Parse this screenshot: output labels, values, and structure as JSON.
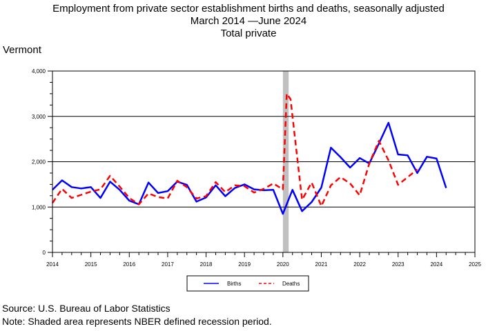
{
  "title_lines": [
    "Employment from private sector establishment births and deaths, seasonally adjusted",
    "March 2014 —June 2024",
    "Total private"
  ],
  "state_label": "Vermont",
  "footnotes": [
    "Source: U.S. Bureau of Labor Statistics",
    "Note: Shaded area represents NBER defined recession period."
  ],
  "colors": {
    "births": "#0000ff",
    "deaths": "#ff0000",
    "recession": "#c0c0c0",
    "grid": "#000000"
  },
  "chart_data": {
    "type": "line",
    "xlim": [
      2014,
      2025
    ],
    "ylim": [
      0,
      4000
    ],
    "x_ticks": [
      2014,
      2015,
      2016,
      2017,
      2018,
      2019,
      2020,
      2021,
      2022,
      2023,
      2024,
      2025
    ],
    "y_ticks": [
      "0",
      "1,000",
      "2,000",
      "3,000",
      "4,000"
    ],
    "y_tick_values": [
      0,
      1000,
      2000,
      3000,
      4000
    ],
    "grid": "horizontal",
    "recession_shading": [
      2020.0,
      2020.15
    ],
    "legend_position": "bottom-center",
    "series": [
      {
        "name": "Births",
        "style": "solid",
        "x": [
          2014.0,
          2014.25,
          2014.5,
          2014.75,
          2015.0,
          2015.25,
          2015.5,
          2015.75,
          2016.0,
          2016.25,
          2016.5,
          2016.75,
          2017.0,
          2017.25,
          2017.5,
          2017.75,
          2018.0,
          2018.25,
          2018.5,
          2018.75,
          2019.0,
          2019.25,
          2019.5,
          2019.75,
          2020.0,
          2020.25,
          2020.5,
          2020.75,
          2021.0,
          2021.25,
          2021.5,
          2021.75,
          2022.0,
          2022.25,
          2022.5,
          2022.75,
          2023.0,
          2023.25,
          2023.5,
          2023.75,
          2024.0,
          2024.25
        ],
        "values": [
          1380,
          1590,
          1440,
          1410,
          1440,
          1200,
          1560,
          1380,
          1140,
          1060,
          1540,
          1310,
          1350,
          1560,
          1490,
          1120,
          1210,
          1480,
          1240,
          1420,
          1500,
          1390,
          1370,
          1380,
          850,
          1380,
          910,
          1110,
          1430,
          2310,
          2100,
          1870,
          2080,
          1960,
          2400,
          2860,
          2160,
          2140,
          1750,
          2110,
          2070,
          1420
        ]
      },
      {
        "name": "Deaths",
        "style": "dashed",
        "x": [
          2014.0,
          2014.25,
          2014.5,
          2014.75,
          2015.0,
          2015.25,
          2015.5,
          2015.75,
          2016.0,
          2016.25,
          2016.5,
          2016.75,
          2017.0,
          2017.25,
          2017.5,
          2017.75,
          2018.0,
          2018.25,
          2018.5,
          2018.75,
          2019.0,
          2019.25,
          2019.5,
          2019.75,
          2020.0,
          2020.1,
          2020.2,
          2020.5,
          2020.75,
          2021.0,
          2021.25,
          2021.5,
          2021.75,
          2022.0,
          2022.25,
          2022.5,
          2022.75,
          2023.0,
          2023.25,
          2023.5,
          2023.75
        ],
        "values": [
          1090,
          1400,
          1200,
          1270,
          1340,
          1390,
          1690,
          1450,
          1200,
          1060,
          1300,
          1220,
          1190,
          1580,
          1440,
          1190,
          1240,
          1550,
          1330,
          1480,
          1460,
          1320,
          1400,
          1520,
          1390,
          3500,
          3380,
          1160,
          1540,
          1020,
          1480,
          1660,
          1520,
          1260,
          1960,
          2460,
          2030,
          1490,
          1660,
          1830,
          null
        ]
      }
    ]
  }
}
